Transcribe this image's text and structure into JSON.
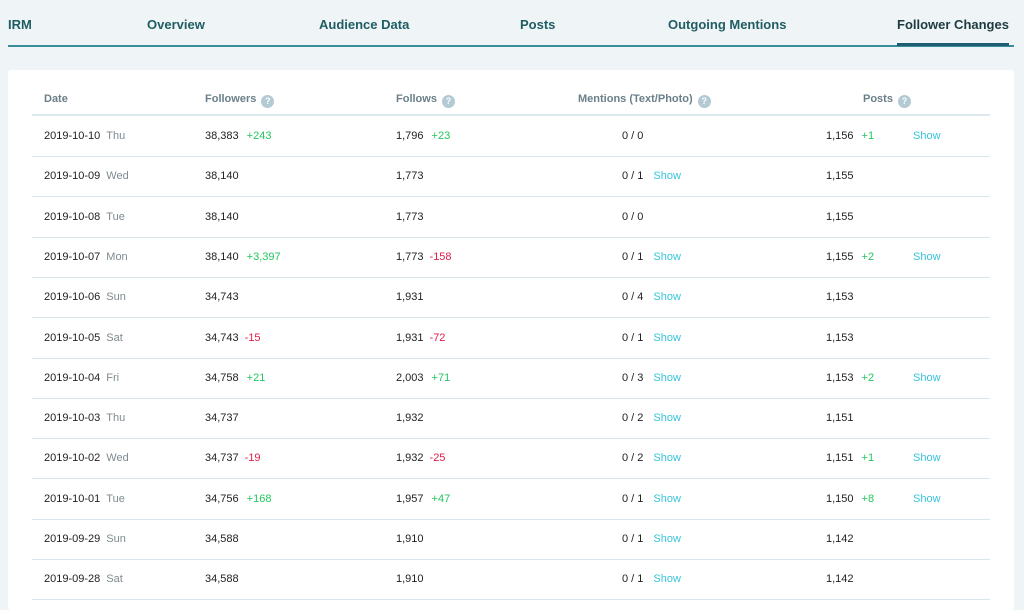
{
  "nav": {
    "tabs": [
      {
        "label": "IRM"
      },
      {
        "label": "Overview"
      },
      {
        "label": "Audience Data"
      },
      {
        "label": "Posts"
      },
      {
        "label": "Outgoing Mentions"
      },
      {
        "label": "Follower Changes",
        "active": true
      }
    ]
  },
  "table": {
    "headers": {
      "date": "Date",
      "followers": "Followers",
      "follows": "Follows",
      "mentions": "Mentions (Text/Photo)",
      "posts": "Posts"
    },
    "show_label": "Show",
    "rows": [
      {
        "date": "2019-10-10",
        "day": "Thu",
        "followers": "38,383",
        "followers_change": "+243",
        "follows": "1,796",
        "follows_change": "+23",
        "mentions": "0 / 0",
        "mentions_show": false,
        "posts": "1,156",
        "posts_change": "+1",
        "posts_show": true
      },
      {
        "date": "2019-10-09",
        "day": "Wed",
        "followers": "38,140",
        "followers_change": "",
        "follows": "1,773",
        "follows_change": "",
        "mentions": "0 / 1",
        "mentions_show": true,
        "posts": "1,155",
        "posts_change": "",
        "posts_show": false
      },
      {
        "date": "2019-10-08",
        "day": "Tue",
        "followers": "38,140",
        "followers_change": "",
        "follows": "1,773",
        "follows_change": "",
        "mentions": "0 / 0",
        "mentions_show": false,
        "posts": "1,155",
        "posts_change": "",
        "posts_show": false
      },
      {
        "date": "2019-10-07",
        "day": "Mon",
        "followers": "38,140",
        "followers_change": "+3,397",
        "follows": "1,773",
        "follows_change": "-158",
        "mentions": "0 / 1",
        "mentions_show": true,
        "posts": "1,155",
        "posts_change": "+2",
        "posts_show": true
      },
      {
        "date": "2019-10-06",
        "day": "Sun",
        "followers": "34,743",
        "followers_change": "",
        "follows": "1,931",
        "follows_change": "",
        "mentions": "0 / 4",
        "mentions_show": true,
        "posts": "1,153",
        "posts_change": "",
        "posts_show": false
      },
      {
        "date": "2019-10-05",
        "day": "Sat",
        "followers": "34,743",
        "followers_change": "-15",
        "follows": "1,931",
        "follows_change": "-72",
        "mentions": "0 / 1",
        "mentions_show": true,
        "posts": "1,153",
        "posts_change": "",
        "posts_show": false
      },
      {
        "date": "2019-10-04",
        "day": "Fri",
        "followers": "34,758",
        "followers_change": "+21",
        "follows": "2,003",
        "follows_change": "+71",
        "mentions": "0 / 3",
        "mentions_show": true,
        "posts": "1,153",
        "posts_change": "+2",
        "posts_show": true
      },
      {
        "date": "2019-10-03",
        "day": "Thu",
        "followers": "34,737",
        "followers_change": "",
        "follows": "1,932",
        "follows_change": "",
        "mentions": "0 / 2",
        "mentions_show": true,
        "posts": "1,151",
        "posts_change": "",
        "posts_show": false
      },
      {
        "date": "2019-10-02",
        "day": "Wed",
        "followers": "34,737",
        "followers_change": "-19",
        "follows": "1,932",
        "follows_change": "-25",
        "mentions": "0 / 2",
        "mentions_show": true,
        "posts": "1,151",
        "posts_change": "+1",
        "posts_show": true
      },
      {
        "date": "2019-10-01",
        "day": "Tue",
        "followers": "34,756",
        "followers_change": "+168",
        "follows": "1,957",
        "follows_change": "+47",
        "mentions": "0 / 1",
        "mentions_show": true,
        "posts": "1,150",
        "posts_change": "+8",
        "posts_show": true
      },
      {
        "date": "2019-09-29",
        "day": "Sun",
        "followers": "34,588",
        "followers_change": "",
        "follows": "1,910",
        "follows_change": "",
        "mentions": "0 / 1",
        "mentions_show": true,
        "posts": "1,142",
        "posts_change": "",
        "posts_show": false
      },
      {
        "date": "2019-09-28",
        "day": "Sat",
        "followers": "34,588",
        "followers_change": "",
        "follows": "1,910",
        "follows_change": "",
        "mentions": "0 / 1",
        "mentions_show": true,
        "posts": "1,142",
        "posts_change": "",
        "posts_show": false
      }
    ]
  },
  "colors": {
    "positive": "#22c55e",
    "negative": "#e11d48",
    "link": "#38c4d8",
    "nav_text": "#1f5d63"
  }
}
